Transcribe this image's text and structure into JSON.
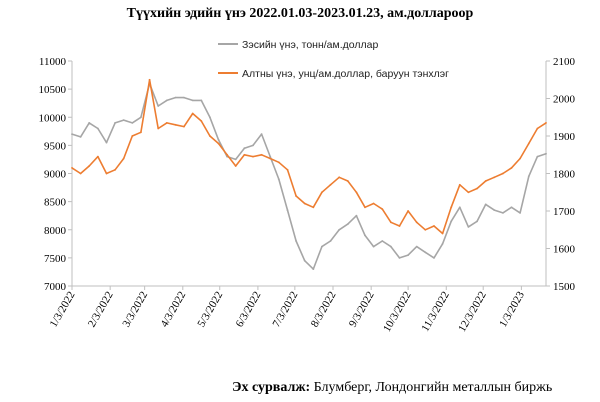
{
  "title": "Түүхийн эдийн үнэ 2022.01.03-2023.01.23, ам.доллароор",
  "source": {
    "label": "Эх сурвалж:",
    "text": "Блумберг, Лондонгийн металлын биржь"
  },
  "chart_data": {
    "type": "line",
    "x_tick_labels": [
      "1/3/2022",
      "2/3/2022",
      "3/3/2022",
      "4/3/2022",
      "5/3/2022",
      "6/3/2022",
      "7/3/2022",
      "8/3/2022",
      "9/3/2022",
      "10/3/2022",
      "11/3/2022",
      "12/3/2022",
      "1/3/2023"
    ],
    "x_start": "2022-01-03",
    "x_end": "2023-01-23",
    "y_left": {
      "min": 7000,
      "max": 11000,
      "step": 500,
      "ticks": [
        "7000",
        "7500",
        "8000",
        "8500",
        "9000",
        "9500",
        "10000",
        "10500",
        "11000"
      ]
    },
    "y_right": {
      "min": 1500,
      "max": 2100,
      "step": 100,
      "ticks": [
        "1500",
        "1600",
        "1700",
        "1800",
        "1900",
        "2000",
        "2100"
      ]
    },
    "legend_placement": "top-center",
    "grid": false,
    "series": [
      {
        "name": "Зэсийн үнэ, тонн/ам.доллар",
        "axis": "left",
        "color": "#a6a6a6",
        "points": [
          [
            "2022-01-03",
            9700
          ],
          [
            "2022-01-10",
            9650
          ],
          [
            "2022-01-17",
            9900
          ],
          [
            "2022-01-24",
            9800
          ],
          [
            "2022-01-31",
            9550
          ],
          [
            "2022-02-07",
            9900
          ],
          [
            "2022-02-14",
            9950
          ],
          [
            "2022-02-21",
            9900
          ],
          [
            "2022-02-28",
            10000
          ],
          [
            "2022-03-07",
            10600
          ],
          [
            "2022-03-14",
            10200
          ],
          [
            "2022-03-21",
            10300
          ],
          [
            "2022-03-28",
            10350
          ],
          [
            "2022-04-04",
            10350
          ],
          [
            "2022-04-11",
            10300
          ],
          [
            "2022-04-18",
            10300
          ],
          [
            "2022-04-25",
            10000
          ],
          [
            "2022-05-02",
            9600
          ],
          [
            "2022-05-09",
            9300
          ],
          [
            "2022-05-16",
            9250
          ],
          [
            "2022-05-23",
            9450
          ],
          [
            "2022-05-30",
            9500
          ],
          [
            "2022-06-06",
            9700
          ],
          [
            "2022-06-13",
            9300
          ],
          [
            "2022-06-20",
            8900
          ],
          [
            "2022-06-27",
            8350
          ],
          [
            "2022-07-04",
            7800
          ],
          [
            "2022-07-11",
            7450
          ],
          [
            "2022-07-18",
            7300
          ],
          [
            "2022-07-25",
            7700
          ],
          [
            "2022-08-01",
            7800
          ],
          [
            "2022-08-08",
            8000
          ],
          [
            "2022-08-15",
            8100
          ],
          [
            "2022-08-22",
            8250
          ],
          [
            "2022-08-29",
            7900
          ],
          [
            "2022-09-05",
            7700
          ],
          [
            "2022-09-12",
            7800
          ],
          [
            "2022-09-19",
            7700
          ],
          [
            "2022-09-26",
            7500
          ],
          [
            "2022-10-03",
            7550
          ],
          [
            "2022-10-10",
            7700
          ],
          [
            "2022-10-17",
            7600
          ],
          [
            "2022-10-24",
            7500
          ],
          [
            "2022-10-31",
            7750
          ],
          [
            "2022-11-07",
            8150
          ],
          [
            "2022-11-14",
            8400
          ],
          [
            "2022-11-21",
            8050
          ],
          [
            "2022-11-28",
            8150
          ],
          [
            "2022-12-05",
            8450
          ],
          [
            "2022-12-12",
            8350
          ],
          [
            "2022-12-19",
            8300
          ],
          [
            "2022-12-26",
            8400
          ],
          [
            "2023-01-02",
            8300
          ],
          [
            "2023-01-09",
            8950
          ],
          [
            "2023-01-16",
            9300
          ],
          [
            "2023-01-23",
            9350
          ]
        ]
      },
      {
        "name": "Алтны үнэ, унц/ам.доллар, баруун тэнхлэг",
        "axis": "right",
        "color": "#ed7d31",
        "points": [
          [
            "2022-01-03",
            1815
          ],
          [
            "2022-01-10",
            1800
          ],
          [
            "2022-01-17",
            1820
          ],
          [
            "2022-01-24",
            1845
          ],
          [
            "2022-01-31",
            1800
          ],
          [
            "2022-02-07",
            1810
          ],
          [
            "2022-02-14",
            1840
          ],
          [
            "2022-02-21",
            1900
          ],
          [
            "2022-02-28",
            1910
          ],
          [
            "2022-03-07",
            2050
          ],
          [
            "2022-03-14",
            1920
          ],
          [
            "2022-03-21",
            1935
          ],
          [
            "2022-03-28",
            1930
          ],
          [
            "2022-04-04",
            1925
          ],
          [
            "2022-04-11",
            1960
          ],
          [
            "2022-04-18",
            1940
          ],
          [
            "2022-04-25",
            1900
          ],
          [
            "2022-05-02",
            1880
          ],
          [
            "2022-05-09",
            1850
          ],
          [
            "2022-05-16",
            1820
          ],
          [
            "2022-05-23",
            1850
          ],
          [
            "2022-05-30",
            1845
          ],
          [
            "2022-06-06",
            1850
          ],
          [
            "2022-06-13",
            1840
          ],
          [
            "2022-06-20",
            1830
          ],
          [
            "2022-06-27",
            1810
          ],
          [
            "2022-07-04",
            1740
          ],
          [
            "2022-07-11",
            1720
          ],
          [
            "2022-07-18",
            1710
          ],
          [
            "2022-07-25",
            1750
          ],
          [
            "2022-08-01",
            1770
          ],
          [
            "2022-08-08",
            1790
          ],
          [
            "2022-08-15",
            1780
          ],
          [
            "2022-08-22",
            1750
          ],
          [
            "2022-08-29",
            1710
          ],
          [
            "2022-09-05",
            1720
          ],
          [
            "2022-09-12",
            1705
          ],
          [
            "2022-09-19",
            1670
          ],
          [
            "2022-09-26",
            1660
          ],
          [
            "2022-10-03",
            1700
          ],
          [
            "2022-10-10",
            1670
          ],
          [
            "2022-10-17",
            1650
          ],
          [
            "2022-10-24",
            1660
          ],
          [
            "2022-10-31",
            1640
          ],
          [
            "2022-11-07",
            1710
          ],
          [
            "2022-11-14",
            1770
          ],
          [
            "2022-11-21",
            1750
          ],
          [
            "2022-11-28",
            1760
          ],
          [
            "2022-12-05",
            1780
          ],
          [
            "2022-12-12",
            1790
          ],
          [
            "2022-12-19",
            1800
          ],
          [
            "2022-12-26",
            1815
          ],
          [
            "2023-01-02",
            1840
          ],
          [
            "2023-01-09",
            1880
          ],
          [
            "2023-01-16",
            1920
          ],
          [
            "2023-01-23",
            1935
          ]
        ]
      }
    ]
  }
}
